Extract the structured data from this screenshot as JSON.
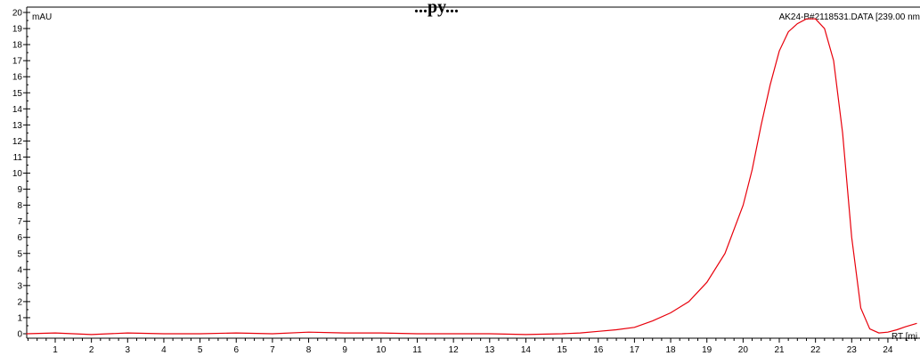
{
  "chart_data": {
    "type": "line",
    "title": "...py...",
    "ylabel": "mAU",
    "xlabel": "RT [mi",
    "legend": "AK24-B#2118531.DATA [239.00 nm",
    "legend_placement": "top-right",
    "xlim": [
      0.2,
      24.8
    ],
    "ylim": [
      -0.2,
      20
    ],
    "x_ticks": [
      "1",
      "2",
      "3",
      "4",
      "5",
      "6",
      "7",
      "8",
      "9",
      "10",
      "11",
      "12",
      "13",
      "14",
      "15",
      "16",
      "17",
      "18",
      "19",
      "20",
      "21",
      "22",
      "23",
      "24"
    ],
    "y_ticks": [
      "0",
      "1",
      "2",
      "3",
      "4",
      "5",
      "6",
      "7",
      "8",
      "9",
      "10",
      "11",
      "12",
      "13",
      "14",
      "15",
      "16",
      "17",
      "18",
      "19",
      "20"
    ],
    "grid": false,
    "series_color": "#e8000b",
    "series": [
      {
        "x": [
          0.2,
          1,
          2,
          3,
          4,
          5,
          6,
          7,
          8,
          9,
          10,
          11,
          12,
          13,
          14,
          15,
          15.5,
          16,
          16.5,
          17,
          17.5,
          18,
          18.5,
          19,
          19.5,
          20,
          20.25,
          20.5,
          20.75,
          21,
          21.25,
          21.5,
          21.75,
          22,
          22.25,
          22.5,
          22.75,
          23,
          23.25,
          23.5,
          23.75,
          24,
          24.25,
          24.5,
          24.8
        ],
        "y": [
          0.0,
          0.05,
          -0.05,
          0.05,
          0.0,
          0.0,
          0.05,
          0.0,
          0.1,
          0.05,
          0.05,
          0.0,
          0.0,
          0.0,
          -0.05,
          0.0,
          0.05,
          0.15,
          0.25,
          0.4,
          0.8,
          1.3,
          2.0,
          3.2,
          5.0,
          8.0,
          10.2,
          13.0,
          15.5,
          17.6,
          18.8,
          19.3,
          19.6,
          19.6,
          19.0,
          17.0,
          12.5,
          6.0,
          1.6,
          0.3,
          0.05,
          0.1,
          0.25,
          0.45,
          0.65
        ]
      }
    ]
  }
}
